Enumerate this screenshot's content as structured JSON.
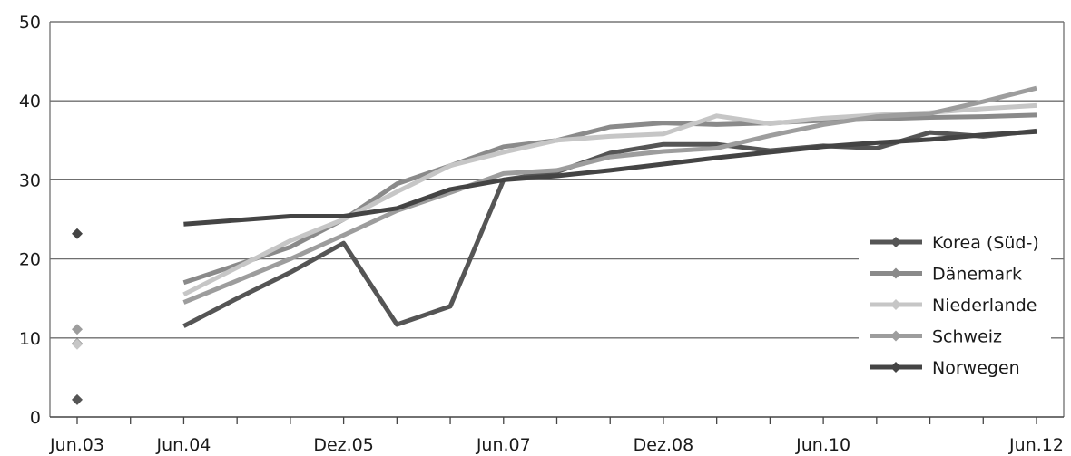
{
  "chart_data": {
    "type": "line",
    "title": "",
    "xlabel": "",
    "ylabel": "",
    "ylim": [
      0,
      50
    ],
    "yticks": [
      0,
      10,
      20,
      30,
      40,
      50
    ],
    "xlim": [
      0,
      18
    ],
    "x_tick_marks": [
      0,
      1,
      2,
      3,
      4,
      5,
      6,
      7,
      8,
      9,
      10,
      11,
      12,
      13,
      14,
      15,
      16,
      17,
      18
    ],
    "x_tick_labels": [
      {
        "x": 0,
        "label": "Jun.03"
      },
      {
        "x": 2,
        "label": "Jun.04"
      },
      {
        "x": 5,
        "label": "Dez.05"
      },
      {
        "x": 8,
        "label": "Jun.07"
      },
      {
        "x": 11,
        "label": "Dez.08"
      },
      {
        "x": 14,
        "label": "Jun.10"
      },
      {
        "x": 18,
        "label": "Jun.12"
      }
    ],
    "grid": "horizontal",
    "legend_position": "right",
    "series": [
      {
        "name": "Korea (Süd-)",
        "color": "#555555",
        "marker": "diamond",
        "points": [
          [
            0,
            2.2
          ],
          [
            2,
            11.5
          ],
          [
            3,
            15
          ],
          [
            4,
            18.3
          ],
          [
            5,
            22
          ],
          [
            6,
            11.7
          ],
          [
            7,
            14
          ],
          [
            8,
            30
          ],
          [
            9,
            31
          ],
          [
            10,
            33.4
          ],
          [
            11,
            34.5
          ],
          [
            12,
            34.5
          ],
          [
            13,
            33.7
          ],
          [
            14,
            34.3
          ],
          [
            15,
            34
          ],
          [
            16,
            36
          ],
          [
            17,
            35.5
          ],
          [
            18,
            36.2
          ]
        ]
      },
      {
        "name": "Dänemark",
        "color": "#8a8a8a",
        "marker": "diamond",
        "points": [
          [
            0,
            9.3
          ],
          [
            2,
            17
          ],
          [
            4,
            21.5
          ],
          [
            5,
            25
          ],
          [
            6,
            29.5
          ],
          [
            7,
            31.8
          ],
          [
            8,
            34.2
          ],
          [
            9,
            35
          ],
          [
            10,
            36.7
          ],
          [
            11,
            37.2
          ],
          [
            12,
            37
          ],
          [
            13,
            37.2
          ],
          [
            14,
            37.5
          ],
          [
            15,
            37.7
          ],
          [
            16,
            37.9
          ],
          [
            17,
            38
          ],
          [
            18,
            38.2
          ]
        ]
      },
      {
        "name": "Niederlande",
        "color": "#c6c6c6",
        "marker": "diamond",
        "points": [
          [
            0,
            9.2
          ],
          [
            2,
            15.5
          ],
          [
            4,
            22.3
          ],
          [
            5,
            25
          ],
          [
            6,
            28.5
          ],
          [
            7,
            31.8
          ],
          [
            8,
            33.5
          ],
          [
            9,
            35
          ],
          [
            10,
            35.5
          ],
          [
            11,
            35.8
          ],
          [
            12,
            38.1
          ],
          [
            13,
            37.1
          ],
          [
            14,
            37.8
          ],
          [
            15,
            38.2
          ],
          [
            16,
            38.5
          ],
          [
            17,
            39
          ],
          [
            18,
            39.4
          ]
        ]
      },
      {
        "name": "Schweiz",
        "color": "#9d9d9d",
        "marker": "diamond",
        "points": [
          [
            0,
            11.1
          ],
          [
            2,
            14.5
          ],
          [
            4,
            20
          ],
          [
            5,
            23
          ],
          [
            6,
            26.1
          ],
          [
            7,
            28.4
          ],
          [
            8,
            30.8
          ],
          [
            9,
            31.2
          ],
          [
            10,
            32.9
          ],
          [
            11,
            33.6
          ],
          [
            12,
            34
          ],
          [
            13,
            35.6
          ],
          [
            14,
            37
          ],
          [
            15,
            38
          ],
          [
            16,
            38.4
          ],
          [
            17,
            39.9
          ],
          [
            18,
            41.6
          ]
        ]
      },
      {
        "name": "Norwegen",
        "color": "#444444",
        "marker": "diamond",
        "points": [
          [
            0,
            23.2
          ],
          [
            2,
            24.4
          ],
          [
            3,
            24.9
          ],
          [
            4,
            25.4
          ],
          [
            5,
            25.4
          ],
          [
            6,
            26.4
          ],
          [
            7,
            28.8
          ],
          [
            8,
            30
          ],
          [
            9,
            30.5
          ],
          [
            10,
            31.2
          ],
          [
            11,
            32
          ],
          [
            12,
            32.8
          ],
          [
            13,
            33.5
          ],
          [
            14,
            34.2
          ],
          [
            15,
            34.7
          ],
          [
            16,
            35.1
          ],
          [
            17,
            35.7
          ],
          [
            18,
            36.1
          ]
        ]
      }
    ]
  }
}
